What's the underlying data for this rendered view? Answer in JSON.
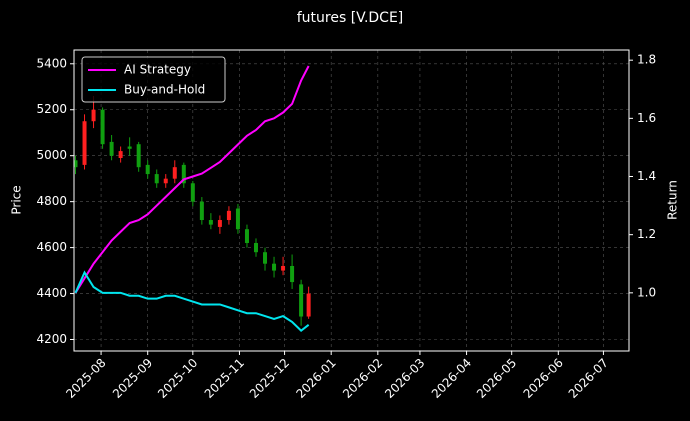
{
  "chart_data": {
    "type": "candlestick-lines",
    "title": "futures [V.DCE]",
    "ylabel": "Price",
    "y2label": "Return",
    "x": [
      "2025-07-15",
      "2025-07-21",
      "2025-07-27",
      "2025-08-02",
      "2025-08-08",
      "2025-08-14",
      "2025-08-20",
      "2025-08-26",
      "2025-09-01",
      "2025-09-07",
      "2025-09-13",
      "2025-09-19",
      "2025-09-25",
      "2025-10-01",
      "2025-10-07",
      "2025-10-13",
      "2025-10-19",
      "2025-10-25",
      "2025-10-31",
      "2025-11-06",
      "2025-11-12",
      "2025-11-18",
      "2025-11-24",
      "2025-11-30",
      "2025-12-06",
      "2025-12-12",
      "2025-12-17"
    ],
    "open": [
      4980,
      4960,
      5150,
      5200,
      5060,
      4990,
      5040,
      5050,
      4960,
      4920,
      4880,
      4900,
      4960,
      4880,
      4800,
      4720,
      4690,
      4720,
      4770,
      4680,
      4620,
      4580,
      4530,
      4500,
      4520,
      4440,
      4300
    ],
    "high": [
      5000,
      5180,
      5260,
      5210,
      5090,
      5040,
      5080,
      5060,
      4980,
      4940,
      4920,
      4980,
      4970,
      4890,
      4820,
      4750,
      4740,
      4780,
      4790,
      4700,
      4640,
      4600,
      4560,
      4560,
      4570,
      4460,
      4430
    ],
    "low": [
      4920,
      4940,
      5120,
      5030,
      4980,
      4970,
      5000,
      4930,
      4900,
      4860,
      4860,
      4880,
      4860,
      4780,
      4700,
      4680,
      4660,
      4700,
      4660,
      4600,
      4560,
      4500,
      4470,
      4480,
      4420,
      4260,
      4290
    ],
    "close": [
      4950,
      5150,
      5200,
      5050,
      5000,
      5020,
      5030,
      4950,
      4920,
      4880,
      4900,
      4950,
      4880,
      4800,
      4720,
      4700,
      4720,
      4760,
      4680,
      4620,
      4580,
      4530,
      4500,
      4520,
      4450,
      4300,
      4400
    ],
    "up_color": "#ff2020",
    "down_color": "#10a010",
    "series": [
      {
        "name": "AI Strategy",
        "color": "#ff00ff",
        "axis": "y2",
        "values": [
          1.0,
          1.05,
          1.1,
          1.14,
          1.18,
          1.21,
          1.24,
          1.25,
          1.27,
          1.3,
          1.33,
          1.36,
          1.39,
          1.4,
          1.41,
          1.43,
          1.45,
          1.48,
          1.51,
          1.54,
          1.56,
          1.59,
          1.6,
          1.62,
          1.65,
          1.73,
          1.78
        ]
      },
      {
        "name": "Buy-and-Hold",
        "color": "#00e5ee",
        "axis": "y2",
        "values": [
          1.0,
          1.07,
          1.02,
          1.0,
          1.0,
          1.0,
          0.99,
          0.99,
          0.98,
          0.98,
          0.99,
          0.99,
          0.98,
          0.97,
          0.96,
          0.96,
          0.96,
          0.95,
          0.94,
          0.93,
          0.93,
          0.92,
          0.91,
          0.92,
          0.9,
          0.87,
          0.89
        ]
      }
    ],
    "xlim": [
      "2025-07-14",
      "2026-07-18"
    ],
    "xticks": [
      {
        "value": "2025-08-01",
        "label": "2025-08"
      },
      {
        "value": "2025-09-01",
        "label": "2025-09"
      },
      {
        "value": "2025-10-01",
        "label": "2025-10"
      },
      {
        "value": "2025-11-01",
        "label": "2025-11"
      },
      {
        "value": "2025-12-01",
        "label": "2025-12"
      },
      {
        "value": "2026-01-01",
        "label": "2026-01"
      },
      {
        "value": "2026-02-01",
        "label": "2026-02"
      },
      {
        "value": "2026-03-01",
        "label": "2026-03"
      },
      {
        "value": "2026-04-01",
        "label": "2026-04"
      },
      {
        "value": "2026-05-01",
        "label": "2026-05"
      },
      {
        "value": "2026-06-01",
        "label": "2026-06"
      },
      {
        "value": "2026-07-01",
        "label": "2026-07"
      }
    ],
    "ylim": [
      4150,
      5460
    ],
    "yticks": [
      4200,
      4400,
      4600,
      4800,
      5000,
      5200,
      5400
    ],
    "y2lim": [
      0.8,
      1.835
    ],
    "y2ticks": [
      {
        "value": 1,
        "label": "1.0"
      },
      {
        "value": 1.2,
        "label": "1.2"
      },
      {
        "value": 1.4,
        "label": "1.4"
      },
      {
        "value": 1.6,
        "label": "1.6"
      },
      {
        "value": 1.8,
        "label": "1.8"
      }
    ],
    "grid": true,
    "legend": "upper left"
  }
}
